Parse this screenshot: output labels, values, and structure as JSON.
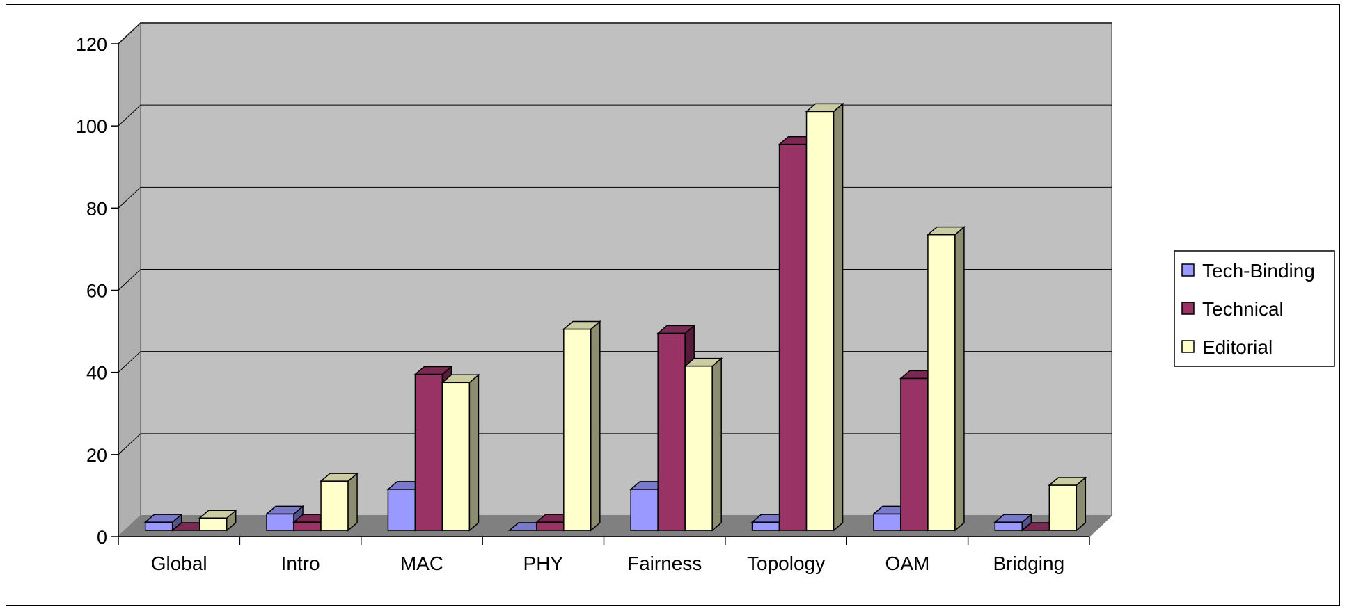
{
  "chart_data": {
    "type": "bar",
    "title": "",
    "xlabel": "",
    "ylabel": "",
    "categories": [
      "Global",
      "Intro",
      "MAC",
      "PHY",
      "Fairness",
      "Topology",
      "OAM",
      "Bridging"
    ],
    "series": [
      {
        "name": "Tech-Binding",
        "values": [
          2,
          4,
          10,
          0,
          10,
          2,
          4,
          2
        ],
        "color": "#9999ff"
      },
      {
        "name": "Technical",
        "values": [
          0,
          2,
          38,
          2,
          48,
          94,
          37,
          0
        ],
        "color": "#993366"
      },
      {
        "name": "Editorial",
        "values": [
          3,
          12,
          36,
          49,
          40,
          102,
          72,
          11
        ],
        "color": "#ffffcc"
      }
    ],
    "ylim": [
      0,
      120
    ],
    "yticks": [
      "0",
      "20",
      "40",
      "60",
      "80",
      "100",
      "120"
    ],
    "grid": true,
    "legend_position": "right",
    "style": "3d-clustered-column",
    "colors": {
      "wall": "#c0c0c0",
      "floor": "#808080",
      "side_wall": "#b0b0b0"
    }
  }
}
